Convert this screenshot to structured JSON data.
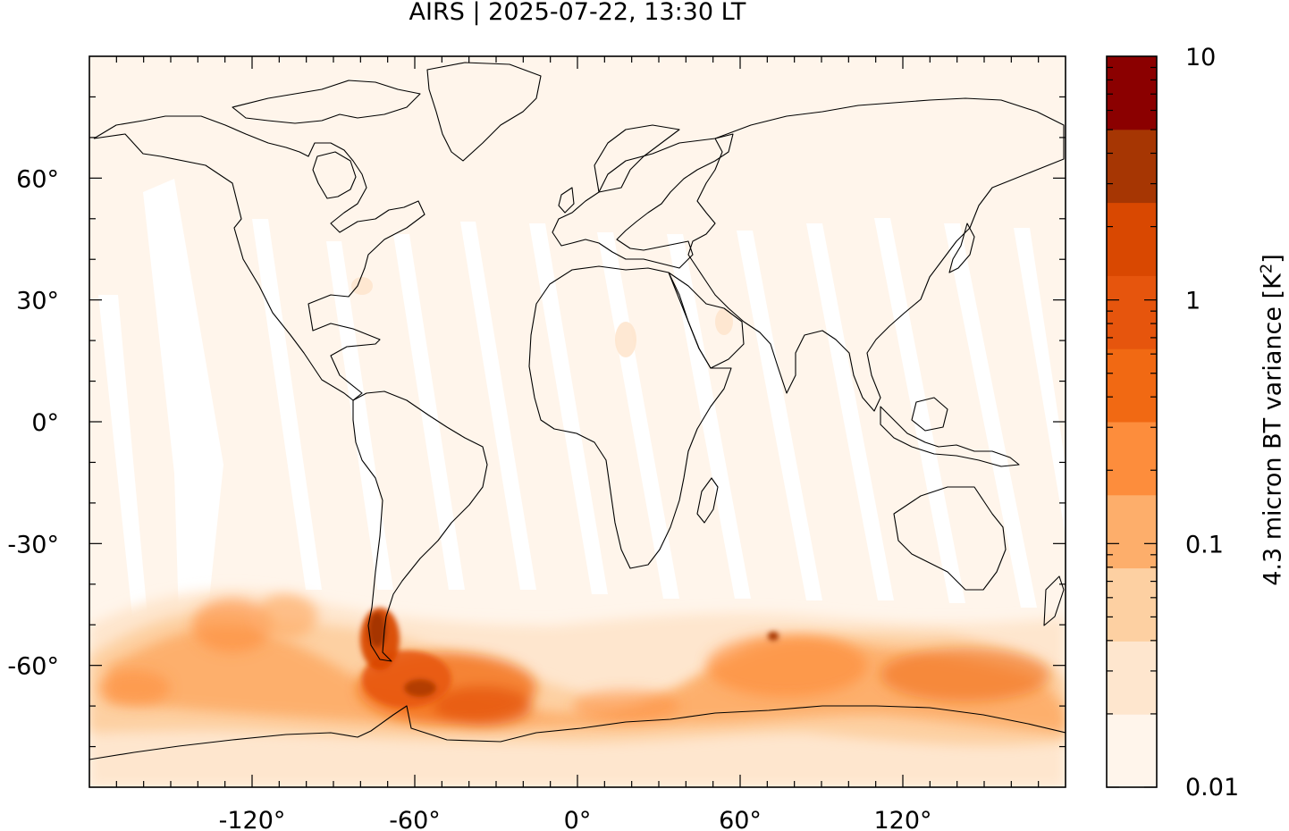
{
  "title": "AIRS | 2025-07-22, 13:30 LT",
  "map": {
    "projection": "equirectangular",
    "lon_range": [
      -180,
      180
    ],
    "lat_range": [
      -90,
      90
    ],
    "lon_ticks": [
      "-120°",
      "-60°",
      "0°",
      "60°",
      "120°"
    ],
    "lat_ticks": [
      "60°",
      "30°",
      "0°",
      "-30°",
      "-60°"
    ],
    "background_color": "#fff5eb",
    "swath_gap_color": "#ffffff",
    "coastline_color": "#000000"
  },
  "colorbar": {
    "label_main": "4.3 micron BT variance [K",
    "label_sup": "2",
    "label_end": "]",
    "scale": "log",
    "range": [
      0.01,
      10
    ],
    "tick_labels": [
      "10",
      "1",
      "0.1",
      "0.01"
    ],
    "colors": [
      "#fff5eb",
      "#fee6ce",
      "#fdd0a2",
      "#fdae6b",
      "#fd8d3c",
      "#f16913",
      "#e6550d",
      "#d94801",
      "#a63603",
      "#8b0000"
    ]
  },
  "features": {
    "peak_region": "Southern Andes / Drake Passage",
    "elevated_band": "Southern Ocean, 45°S–70°S"
  }
}
